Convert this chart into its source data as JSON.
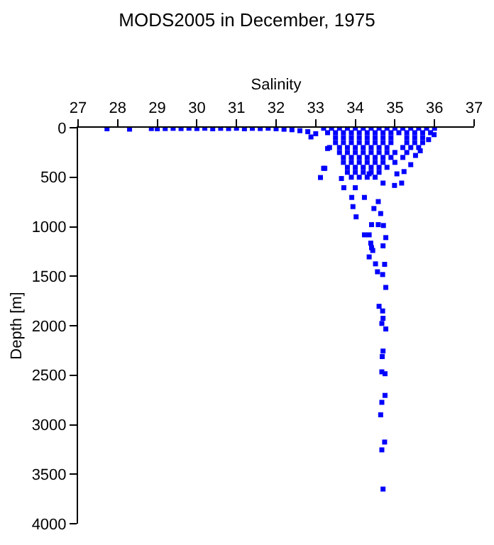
{
  "chart_data": {
    "type": "scatter",
    "title": "MODS2005 in December, 1975",
    "xlabel": "Salinity",
    "ylabel": "Depth [m]",
    "xlim": [
      27,
      37
    ],
    "xticks": [
      27,
      28,
      29,
      30,
      31,
      32,
      33,
      34,
      35,
      36,
      37
    ],
    "ylim": [
      4000,
      0
    ],
    "yticks": [
      0,
      500,
      1000,
      1500,
      2000,
      2500,
      3000,
      3500,
      4000
    ],
    "marker": "square",
    "series": [
      {
        "color": "#0000ff",
        "x": [
          27.73,
          28.3,
          28.85,
          29.0,
          29.2,
          29.4,
          29.6,
          29.8,
          30.0,
          30.2,
          30.4,
          30.6,
          30.8,
          31.0,
          31.2,
          31.4,
          31.6,
          31.8,
          32.0,
          32.2,
          32.4,
          32.6,
          32.8,
          32.88,
          33.0,
          33.2,
          33.4,
          33.6,
          33.8,
          34.0,
          34.2,
          34.4,
          34.6,
          34.8,
          35.0,
          35.2,
          35.4,
          35.6,
          35.8,
          36.0,
          33.3,
          33.5,
          33.7,
          33.9,
          34.1,
          34.3,
          34.5,
          34.7,
          34.9,
          35.1,
          35.3,
          35.5,
          35.7,
          35.9,
          33.5,
          33.7,
          33.9,
          34.1,
          34.3,
          34.5,
          34.7,
          34.9,
          35.3,
          35.5,
          35.7,
          35.85,
          33.5,
          33.7,
          33.9,
          34.1,
          34.3,
          34.5,
          34.7,
          34.9,
          35.3,
          35.5,
          35.7,
          33.6,
          33.8,
          34.0,
          34.2,
          34.4,
          34.6,
          34.8,
          35.2,
          35.4,
          35.6,
          33.6,
          33.8,
          34.0,
          34.2,
          34.4,
          34.6,
          34.8,
          35.0,
          35.3,
          33.7,
          33.9,
          34.1,
          34.3,
          34.5,
          34.7,
          34.9,
          35.2,
          33.7,
          33.9,
          34.1,
          34.3,
          34.5,
          34.7,
          35.0,
          33.8,
          34.0,
          34.2,
          34.4,
          34.6,
          34.8,
          33.8,
          34.0,
          34.2,
          34.4,
          34.6,
          33.9,
          34.1,
          34.3,
          34.5,
          33.23,
          33.12,
          33.35,
          33.3,
          33.2,
          33.65,
          33.71,
          34.0,
          34.7,
          34.99,
          35.17,
          34.35,
          35.05,
          35.23,
          35.4,
          35.52,
          35.64,
          35.99,
          33.91,
          34.23,
          34.58,
          33.94,
          34.47,
          34.02,
          34.64,
          34.58,
          34.71,
          34.41,
          34.35,
          34.23,
          34.39,
          34.77,
          34.7,
          34.41,
          34.44,
          34.35,
          34.51,
          34.74,
          34.56,
          34.69,
          34.77,
          34.6,
          34.69,
          34.7,
          34.67,
          34.77,
          34.7,
          34.68,
          34.67,
          34.75,
          34.75,
          34.67,
          34.64,
          34.74,
          34.67,
          34.7
        ],
        "values": [
          10,
          14,
          8,
          10,
          8,
          6,
          8,
          5,
          8,
          5,
          10,
          6,
          8,
          5,
          10,
          6,
          8,
          5,
          10,
          15,
          20,
          30,
          40,
          93,
          60,
          5,
          5,
          5,
          5,
          5,
          5,
          5,
          5,
          5,
          5,
          5,
          5,
          5,
          5,
          5,
          50,
          50,
          50,
          50,
          50,
          50,
          50,
          50,
          50,
          50,
          50,
          50,
          50,
          50,
          100,
          100,
          100,
          100,
          100,
          100,
          100,
          100,
          100,
          100,
          100,
          120,
          150,
          150,
          150,
          150,
          150,
          150,
          150,
          150,
          150,
          150,
          150,
          200,
          200,
          200,
          200,
          200,
          200,
          200,
          200,
          200,
          200,
          250,
          250,
          250,
          250,
          250,
          250,
          250,
          250,
          250,
          300,
          300,
          300,
          300,
          300,
          300,
          300,
          300,
          350,
          350,
          350,
          350,
          350,
          350,
          350,
          400,
          400,
          400,
          400,
          400,
          400,
          450,
          450,
          450,
          450,
          450,
          500,
          500,
          500,
          500,
          410,
          503,
          200,
          210,
          410,
          513,
          606,
          606,
          559,
          583,
          559,
          466,
          466,
          443,
          373,
          280,
          233,
          70,
          704,
          704,
          746,
          797,
          816,
          900,
          867,
          979,
          988,
          979,
          1082,
          1082,
          1166,
          1110,
          1193,
          1212,
          1240,
          1305,
          1375,
          1380,
          1455,
          1483,
          1613,
          1804,
          1851,
          1925,
          1977,
          2033,
          2256,
          2312,
          2466,
          2485,
          2704,
          2774,
          2900,
          3175,
          3254,
          3650
        ]
      }
    ]
  }
}
